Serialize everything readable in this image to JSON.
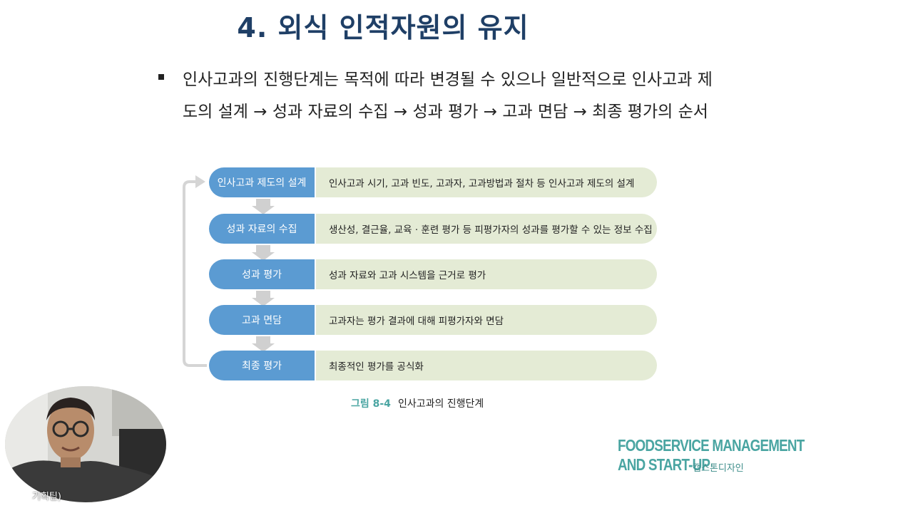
{
  "slide": {
    "title": "4. 외식 인적자원의 유지",
    "bullet": "인사고과의 진행단계는 목적에 따라 변경될 수 있으나 일반적으로 인사고과 제도의 설계 → 성과 자료의 수집 → 성과 평가 → 고과 면담 → 최종 평가의 순서"
  },
  "flow": {
    "steps": [
      {
        "label": "인사고과 제도의 설계",
        "desc": "인사고과 시기, 고과 빈도, 고과자, 고과방법과 절차 등 인사고과 제도의 설계"
      },
      {
        "label": "성과 자료의 수집",
        "desc": "생산성, 결근율, 교육 · 훈련 평가 등 피평가자의 성과를 평가할 수 있는 정보 수집"
      },
      {
        "label": "성과 평가",
        "desc": "성과 자료와 고과 시스템을 근거로 평가"
      },
      {
        "label": "고과 면담",
        "desc": "고과자는 평가 결과에 대해 피평가자와 면담"
      },
      {
        "label": "최종 평가",
        "desc": "최종적인 평가를 공식화"
      }
    ],
    "caption_fig": "그림 8-4",
    "caption_text": "인사고과의 진행단계"
  },
  "brand": {
    "line1": "FOODSERVICE MANAGEMENT",
    "line2": "AND START-UP",
    "publisher": "캡스톤디자인"
  },
  "webcam": {
    "label": "기획팀)"
  },
  "colors": {
    "title": "#1f3f66",
    "step": "#5b9bd2",
    "desc": "#e4ebd5",
    "accent": "#4aa5a2"
  }
}
